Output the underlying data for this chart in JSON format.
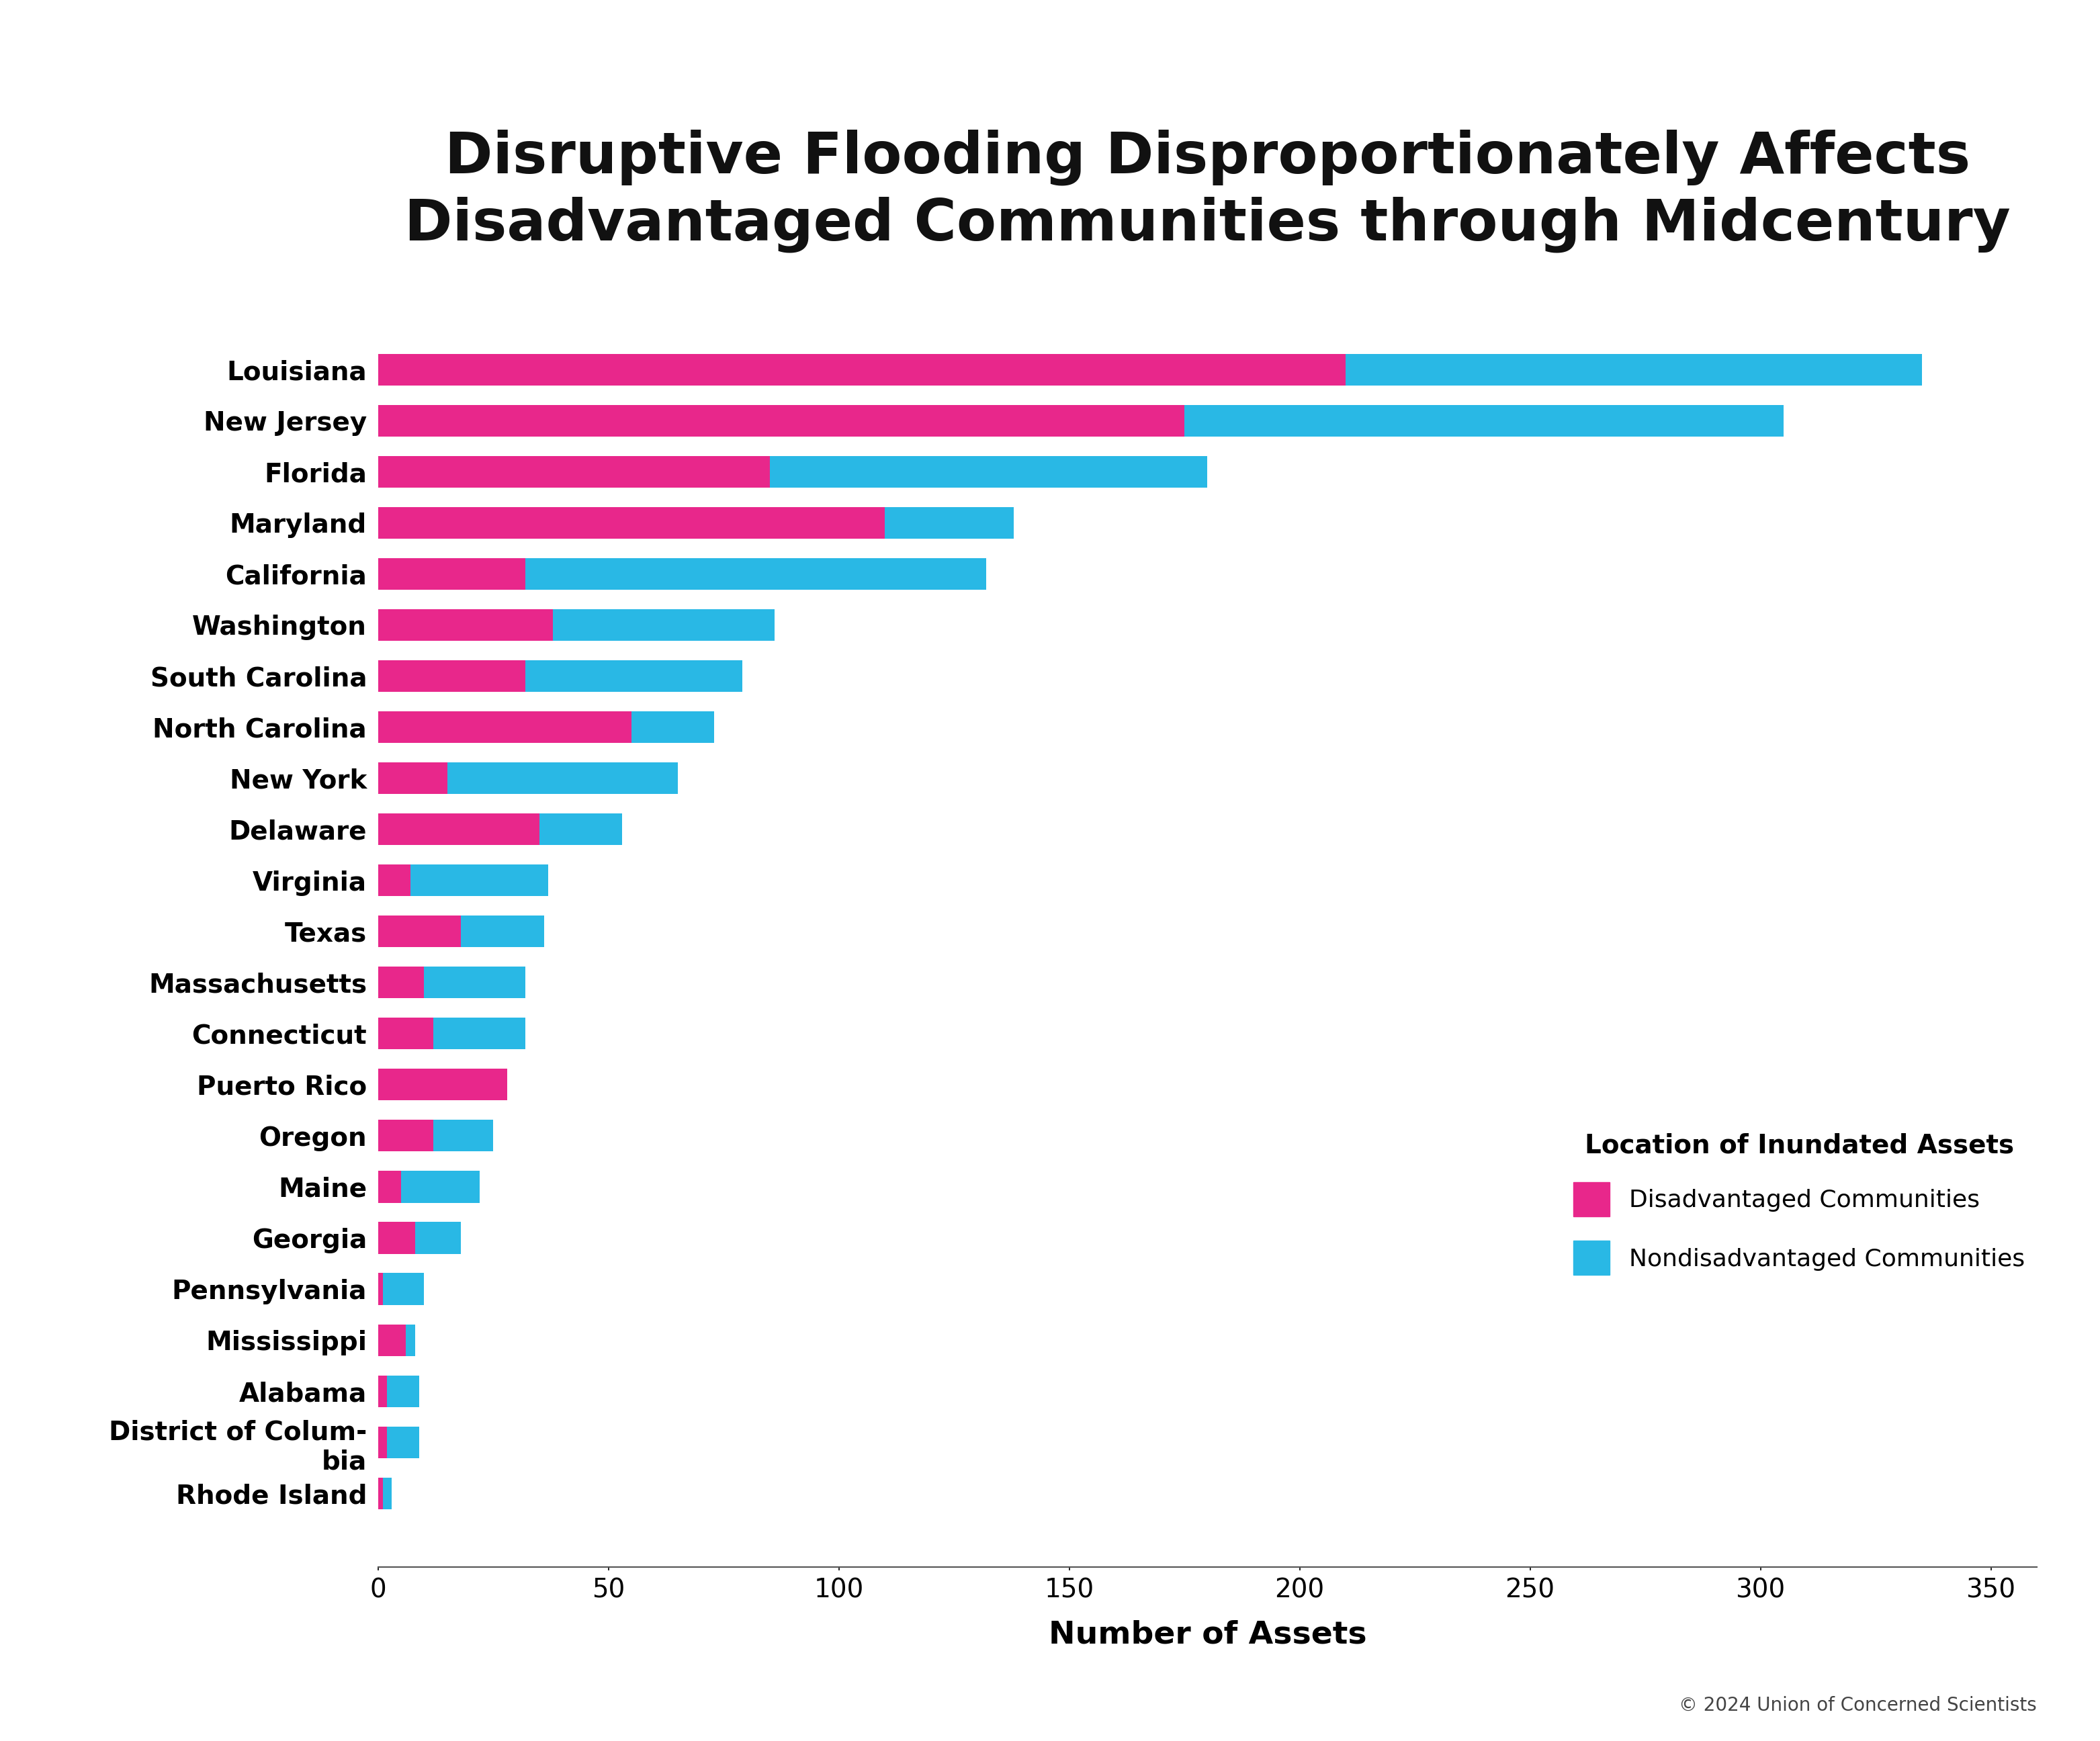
{
  "title": "Disruptive Flooding Disproportionately Affects\nDisadvantaged Communities through Midcentury",
  "xlabel": "Number of Assets",
  "categories": [
    "Louisiana",
    "New Jersey",
    "Florida",
    "Maryland",
    "California",
    "Washington",
    "South Carolina",
    "North Carolina",
    "New York",
    "Delaware",
    "Virginia",
    "Texas",
    "Massachusetts",
    "Connecticut",
    "Puerto Rico",
    "Oregon",
    "Maine",
    "Georgia",
    "Pennsylvania",
    "Mississippi",
    "Alabama",
    "District of Colum-\nbia",
    "Rhode Island"
  ],
  "disadvantaged": [
    210,
    175,
    85,
    110,
    32,
    38,
    32,
    55,
    15,
    35,
    7,
    18,
    10,
    12,
    28,
    12,
    5,
    8,
    1,
    6,
    2,
    2,
    1
  ],
  "nondisadvantaged": [
    125,
    130,
    95,
    28,
    100,
    48,
    47,
    18,
    50,
    18,
    30,
    18,
    22,
    20,
    0,
    13,
    17,
    10,
    9,
    2,
    7,
    7,
    2
  ],
  "color_disadvantaged": "#E8278B",
  "color_nondisadvantaged": "#29B8E5",
  "legend_title": "Location of Inundated Assets",
  "legend_label_dis": "Disadvantaged Communities",
  "legend_label_nondis": "Nondisadvantaged Communities",
  "copyright": "© 2024 Union of Concerned Scientists",
  "xlim": [
    0,
    360
  ],
  "xticks": [
    0,
    50,
    100,
    150,
    200,
    250,
    300,
    350
  ],
  "background_color": "#ffffff",
  "title_fontsize": 62,
  "label_fontsize": 34,
  "tick_fontsize": 28,
  "legend_fontsize": 26,
  "bar_height": 0.62
}
